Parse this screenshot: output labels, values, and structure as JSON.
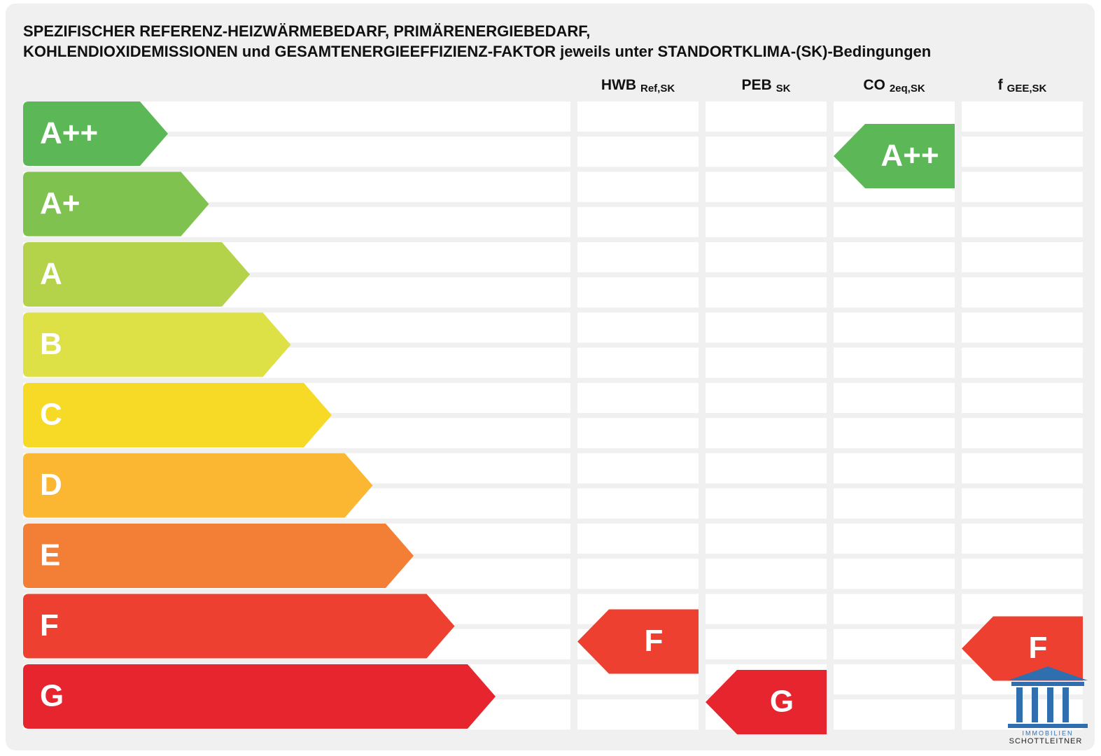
{
  "title": [
    "SPEZIFISCHER REFERENZ-HEIZWÄRMEBEDARF, PRIMÄRENERGIEBEDARF,",
    "KOHLENDIOXIDEMISSIONEN und GESAMTENERGIEEFFIZIENZ-FAKTOR jeweils unter STANDORTKLIMA-(SK)-Bedingungen"
  ],
  "classes": [
    {
      "label": "A++",
      "color": "#5cb757"
    },
    {
      "label": "A+",
      "color": "#7fc250"
    },
    {
      "label": "A",
      "color": "#b4d24a"
    },
    {
      "label": "B",
      "color": "#dde146"
    },
    {
      "label": "C",
      "color": "#f6da26"
    },
    {
      "label": "D",
      "color": "#fbb731"
    },
    {
      "label": "E",
      "color": "#f37f36"
    },
    {
      "label": "F",
      "color": "#ee4031"
    },
    {
      "label": "G",
      "color": "#e6252f"
    }
  ],
  "columns": [
    {
      "name": "HWB",
      "sub": "Ref,SK",
      "rating": "F"
    },
    {
      "name": "PEB",
      "sub": "SK",
      "rating": "G"
    },
    {
      "name": "CO",
      "sub": "2eq,SK",
      "rating": "A++"
    },
    {
      "name": "f",
      "sub": "GEE,SK",
      "rating": "F"
    }
  ],
  "logo": {
    "line1": "IMMOBILIEN",
    "line2": "SCHOTTLEITNER"
  }
}
